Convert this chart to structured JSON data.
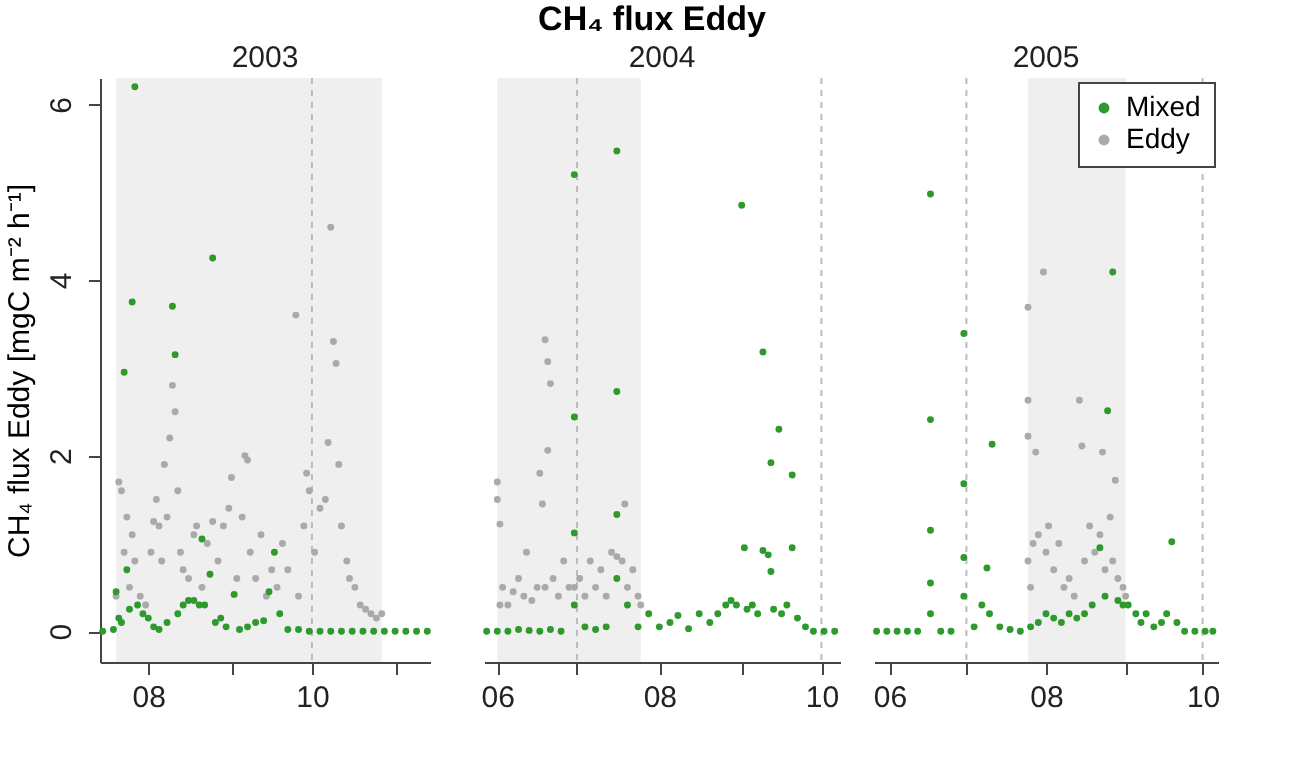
{
  "chart_data": [
    {
      "type": "other",
      "title": "CH₄ flux Eddy"
    },
    {
      "type": "scatter",
      "title": "2003",
      "ylabel": "CH₄ flux Eddy [mgC m⁻² h⁻¹]",
      "marker": "circle",
      "xlim": [
        "2003-07-14",
        "2003-11-14"
      ],
      "xticks": [
        {
          "value": "2003-08-01",
          "label": "08"
        },
        {
          "value": "2003-09-01",
          "label": null
        },
        {
          "value": "2003-10-01",
          "label": "10"
        },
        {
          "value": "2003-11-01",
          "label": null
        }
      ],
      "ylim": [
        -0.35,
        6.3
      ],
      "yticks": [
        0,
        2,
        4,
        6
      ],
      "bands": [
        {
          "axis": "x",
          "from": "2003-07-20",
          "to": "2003-10-27",
          "color": "#efefef"
        }
      ],
      "ref_lines": [
        {
          "axis": "x",
          "value": "2003-10-01",
          "color": "#bbbbbb",
          "line_style": "dashed"
        }
      ],
      "series": [
        {
          "color": "#2e9a2e",
          "x": [
            "2003-07-15",
            "2003-07-19",
            "2003-07-20",
            "2003-07-21",
            "2003-07-22",
            "2003-07-23",
            "2003-07-24",
            "2003-07-25",
            "2003-07-26",
            "2003-07-27",
            "2003-07-28",
            "2003-07-30",
            "2003-08-01",
            "2003-08-03",
            "2003-08-05",
            "2003-08-08",
            "2003-08-10",
            "2003-08-11",
            "2003-08-12",
            "2003-08-14",
            "2003-08-16",
            "2003-08-18",
            "2003-08-20",
            "2003-08-21",
            "2003-08-22",
            "2003-08-24",
            "2003-08-25",
            "2003-08-26",
            "2003-08-28",
            "2003-08-30",
            "2003-09-02",
            "2003-09-04",
            "2003-09-07",
            "2003-09-10",
            "2003-09-13",
            "2003-09-15",
            "2003-09-17",
            "2003-09-19",
            "2003-09-22",
            "2003-09-26",
            "2003-09-30",
            "2003-10-04",
            "2003-10-08",
            "2003-10-12",
            "2003-10-16",
            "2003-10-20",
            "2003-10-24",
            "2003-10-28",
            "2003-11-01",
            "2003-11-05",
            "2003-11-09",
            "2003-11-13"
          ],
          "values": [
            0,
            0.02,
            0.45,
            0.15,
            0.1,
            2.95,
            0.7,
            0.25,
            3.75,
            6.2,
            0.3,
            0.2,
            0.15,
            0.05,
            0.02,
            0.1,
            3.7,
            3.15,
            0.2,
            0.3,
            0.35,
            0.35,
            0.3,
            1.05,
            0.3,
            0.65,
            4.25,
            0.1,
            0.15,
            0.05,
            0.42,
            0.02,
            0.05,
            0.1,
            0.12,
            0.45,
            0.9,
            0.2,
            0.02,
            0.02,
            0,
            0,
            0,
            0,
            0,
            0,
            0,
            0,
            0,
            0,
            0,
            0
          ]
        },
        {
          "color": "#aaaaaa",
          "x": [
            "2003-07-20",
            "2003-07-21",
            "2003-07-22",
            "2003-07-23",
            "2003-07-24",
            "2003-07-25",
            "2003-07-26",
            "2003-07-27",
            "2003-07-29",
            "2003-07-31",
            "2003-08-02",
            "2003-08-03",
            "2003-08-04",
            "2003-08-05",
            "2003-08-06",
            "2003-08-07",
            "2003-08-08",
            "2003-08-09",
            "2003-08-10",
            "2003-08-11",
            "2003-08-12",
            "2003-08-13",
            "2003-08-14",
            "2003-08-16",
            "2003-08-18",
            "2003-08-19",
            "2003-08-21",
            "2003-08-23",
            "2003-08-25",
            "2003-08-27",
            "2003-08-29",
            "2003-08-31",
            "2003-09-01",
            "2003-09-03",
            "2003-09-05",
            "2003-09-06",
            "2003-09-07",
            "2003-09-08",
            "2003-09-10",
            "2003-09-12",
            "2003-09-14",
            "2003-09-16",
            "2003-09-18",
            "2003-09-20",
            "2003-09-22",
            "2003-09-25",
            "2003-09-26",
            "2003-09-28",
            "2003-09-29",
            "2003-09-30",
            "2003-10-02",
            "2003-10-04",
            "2003-10-06",
            "2003-10-07",
            "2003-10-08",
            "2003-10-09",
            "2003-10-10",
            "2003-10-11",
            "2003-10-12",
            "2003-10-14",
            "2003-10-15",
            "2003-10-17",
            "2003-10-19",
            "2003-10-21",
            "2003-10-23",
            "2003-10-25",
            "2003-10-27"
          ],
          "values": [
            0.4,
            1.7,
            1.6,
            0.9,
            1.3,
            0.5,
            1.1,
            0.8,
            0.4,
            0.3,
            0.9,
            1.25,
            1.5,
            1.2,
            0.8,
            1.9,
            1.3,
            2.2,
            2.8,
            2.5,
            1.6,
            0.9,
            0.7,
            0.6,
            1.1,
            1.2,
            0.5,
            1.0,
            1.25,
            0.8,
            1.2,
            1.4,
            1.75,
            0.6,
            1.3,
            2.0,
            1.95,
            0.9,
            0.6,
            1.1,
            0.4,
            0.7,
            0.5,
            1.0,
            0.7,
            3.6,
            0.4,
            1.2,
            1.8,
            1.6,
            0.9,
            1.4,
            1.5,
            2.15,
            4.6,
            3.3,
            3.05,
            1.9,
            1.2,
            0.8,
            0.6,
            0.5,
            0.3,
            0.25,
            0.2,
            0.15,
            0.2
          ]
        }
      ]
    },
    {
      "type": "scatter",
      "title": "2004",
      "marker": "circle",
      "tick_labels": "x",
      "xlim": [
        "2004-05-27",
        "2004-10-08"
      ],
      "xticks": [
        {
          "value": "2004-06-01",
          "label": "06"
        },
        {
          "value": "2004-07-01",
          "label": null
        },
        {
          "value": "2004-08-01",
          "label": "08"
        },
        {
          "value": "2004-09-01",
          "label": null
        },
        {
          "value": "2004-10-01",
          "label": "10"
        }
      ],
      "ylim": [
        -0.35,
        6.3
      ],
      "bands": [
        {
          "axis": "x",
          "from": "2004-06-01",
          "to": "2004-07-25",
          "color": "#efefef"
        }
      ],
      "ref_lines": [
        {
          "axis": "x",
          "value": "2004-07-01",
          "color": "#bbbbbb",
          "line_style": "dashed"
        },
        {
          "axis": "x",
          "value": "2004-10-01",
          "color": "#bbbbbb",
          "line_style": "dashed"
        }
      ],
      "series": [
        {
          "color": "#2e9a2e",
          "x": [
            "2004-05-28",
            "2004-06-01",
            "2004-06-05",
            "2004-06-09",
            "2004-06-13",
            "2004-06-17",
            "2004-06-21",
            "2004-06-25",
            "2004-06-30",
            "2004-06-30",
            "2004-06-30",
            "2004-06-30",
            "2004-07-04",
            "2004-07-08",
            "2004-07-12",
            "2004-07-16",
            "2004-07-16",
            "2004-07-16",
            "2004-07-16",
            "2004-07-20",
            "2004-07-24",
            "2004-07-28",
            "2004-08-01",
            "2004-08-05",
            "2004-08-08",
            "2004-08-12",
            "2004-08-16",
            "2004-08-20",
            "2004-08-23",
            "2004-08-26",
            "2004-08-28",
            "2004-08-30",
            "2004-09-01",
            "2004-09-02",
            "2004-09-03",
            "2004-09-05",
            "2004-09-07",
            "2004-09-09",
            "2004-09-09",
            "2004-09-11",
            "2004-09-12",
            "2004-09-12",
            "2004-09-13",
            "2004-09-15",
            "2004-09-16",
            "2004-09-18",
            "2004-09-20",
            "2004-09-20",
            "2004-09-22",
            "2004-09-25",
            "2004-09-28",
            "2004-10-02",
            "2004-10-06"
          ],
          "values": [
            0,
            0,
            0,
            0.02,
            0.01,
            0,
            0.02,
            0,
            5.2,
            2.44,
            1.12,
            0.3,
            0.05,
            0.02,
            0.05,
            5.47,
            2.73,
            1.33,
            0.6,
            0.3,
            0.05,
            0.2,
            0.05,
            0.1,
            0.18,
            0.03,
            0.2,
            0.1,
            0.2,
            0.3,
            0.35,
            0.3,
            4.85,
            0.95,
            0.25,
            0.3,
            0.2,
            3.18,
            0.92,
            0.87,
            1.92,
            0.68,
            0.25,
            2.3,
            0.2,
            0.3,
            1.78,
            0.95,
            0.15,
            0.05,
            0,
            0,
            0
          ]
        },
        {
          "color": "#aaaaaa",
          "x": [
            "2004-06-01",
            "2004-06-01",
            "2004-06-02",
            "2004-06-02",
            "2004-06-03",
            "2004-06-05",
            "2004-06-07",
            "2004-06-09",
            "2004-06-11",
            "2004-06-12",
            "2004-06-14",
            "2004-06-16",
            "2004-06-17",
            "2004-06-18",
            "2004-06-19",
            "2004-06-19",
            "2004-06-20",
            "2004-06-20",
            "2004-06-21",
            "2004-06-22",
            "2004-06-24",
            "2004-06-26",
            "2004-06-28",
            "2004-06-30",
            "2004-07-02",
            "2004-07-04",
            "2004-07-06",
            "2004-07-08",
            "2004-07-10",
            "2004-07-12",
            "2004-07-14",
            "2004-07-16",
            "2004-07-18",
            "2004-07-19",
            "2004-07-20",
            "2004-07-22",
            "2004-07-24",
            "2004-07-25"
          ],
          "values": [
            1.7,
            1.5,
            1.22,
            0.3,
            0.5,
            0.3,
            0.45,
            0.6,
            0.4,
            0.9,
            0.35,
            0.5,
            1.8,
            1.45,
            3.32,
            0.5,
            3.07,
            2.06,
            2.82,
            0.6,
            0.4,
            0.8,
            0.5,
            0.5,
            0.6,
            0.4,
            0.8,
            0.5,
            0.7,
            0.4,
            0.9,
            0.85,
            0.8,
            1.45,
            0.5,
            0.7,
            0.4,
            0.3
          ]
        }
      ]
    },
    {
      "type": "scatter",
      "title": "2005",
      "marker": "circle",
      "tick_labels": "x",
      "legend": "top right",
      "xlim": [
        "2005-05-26",
        "2005-10-07"
      ],
      "xticks": [
        {
          "value": "2005-06-01",
          "label": "06"
        },
        {
          "value": "2005-07-01",
          "label": null
        },
        {
          "value": "2005-08-01",
          "label": "08"
        },
        {
          "value": "2005-09-01",
          "label": null
        },
        {
          "value": "2005-10-01",
          "label": "10"
        }
      ],
      "ylim": [
        -0.35,
        6.3
      ],
      "bands": [
        {
          "axis": "x",
          "from": "2005-07-25",
          "to": "2005-09-01",
          "color": "#efefef"
        }
      ],
      "ref_lines": [
        {
          "axis": "x",
          "value": "2005-07-01",
          "color": "#bbbbbb",
          "line_style": "dashed"
        },
        {
          "axis": "x",
          "value": "2005-10-01",
          "color": "#bbbbbb",
          "line_style": "dashed"
        }
      ],
      "series": [
        {
          "name": "Mixed",
          "color": "#2e9a2e",
          "x": [
            "2005-05-27",
            "2005-05-31",
            "2005-06-04",
            "2005-06-08",
            "2005-06-12",
            "2005-06-17",
            "2005-06-17",
            "2005-06-17",
            "2005-06-17",
            "2005-06-17",
            "2005-06-21",
            "2005-06-25",
            "2005-06-30",
            "2005-06-30",
            "2005-06-30",
            "2005-06-30",
            "2005-07-04",
            "2005-07-07",
            "2005-07-09",
            "2005-07-10",
            "2005-07-11",
            "2005-07-14",
            "2005-07-18",
            "2005-07-22",
            "2005-07-26",
            "2005-07-29",
            "2005-08-01",
            "2005-08-04",
            "2005-08-07",
            "2005-08-10",
            "2005-08-13",
            "2005-08-16",
            "2005-08-19",
            "2005-08-22",
            "2005-08-24",
            "2005-08-25",
            "2005-08-27",
            "2005-08-29",
            "2005-08-31",
            "2005-09-02",
            "2005-09-05",
            "2005-09-07",
            "2005-09-09",
            "2005-09-12",
            "2005-09-15",
            "2005-09-17",
            "2005-09-19",
            "2005-09-21",
            "2005-09-24",
            "2005-09-28",
            "2005-10-02",
            "2005-10-05"
          ],
          "values": [
            0,
            0,
            0,
            0,
            0,
            4.98,
            2.41,
            1.15,
            0.55,
            0.2,
            0,
            0,
            3.39,
            1.68,
            0.84,
            0.4,
            0.05,
            0.3,
            0.72,
            0.2,
            2.13,
            0.05,
            0.02,
            0,
            0.05,
            0.1,
            0.2,
            0.15,
            0.1,
            0.2,
            0.15,
            0.2,
            0.3,
            0.95,
            0.4,
            2.51,
            4.09,
            0.35,
            0.3,
            0.3,
            0.2,
            0.1,
            0.2,
            0.05,
            0.1,
            0.2,
            1.02,
            0.1,
            0,
            0,
            0,
            0
          ]
        },
        {
          "name": "Eddy",
          "color": "#aaaaaa",
          "x": [
            "2005-07-25",
            "2005-07-25",
            "2005-07-25",
            "2005-07-25",
            "2005-07-26",
            "2005-07-27",
            "2005-07-28",
            "2005-07-29",
            "2005-07-31",
            "2005-08-01",
            "2005-08-02",
            "2005-08-04",
            "2005-08-06",
            "2005-08-08",
            "2005-08-10",
            "2005-08-12",
            "2005-08-14",
            "2005-08-15",
            "2005-08-16",
            "2005-08-18",
            "2005-08-20",
            "2005-08-22",
            "2005-08-23",
            "2005-08-24",
            "2005-08-26",
            "2005-08-27",
            "2005-08-28",
            "2005-08-29",
            "2005-08-31",
            "2005-09-01"
          ],
          "values": [
            3.69,
            2.63,
            2.22,
            0.8,
            0.5,
            1.0,
            2.04,
            1.1,
            4.09,
            0.9,
            1.2,
            0.7,
            1.0,
            0.5,
            0.6,
            0.4,
            2.63,
            2.11,
            0.8,
            1.2,
            0.9,
            1.1,
            2.04,
            0.7,
            1.3,
            0.8,
            1.72,
            0.6,
            0.5,
            0.4
          ]
        }
      ]
    }
  ]
}
